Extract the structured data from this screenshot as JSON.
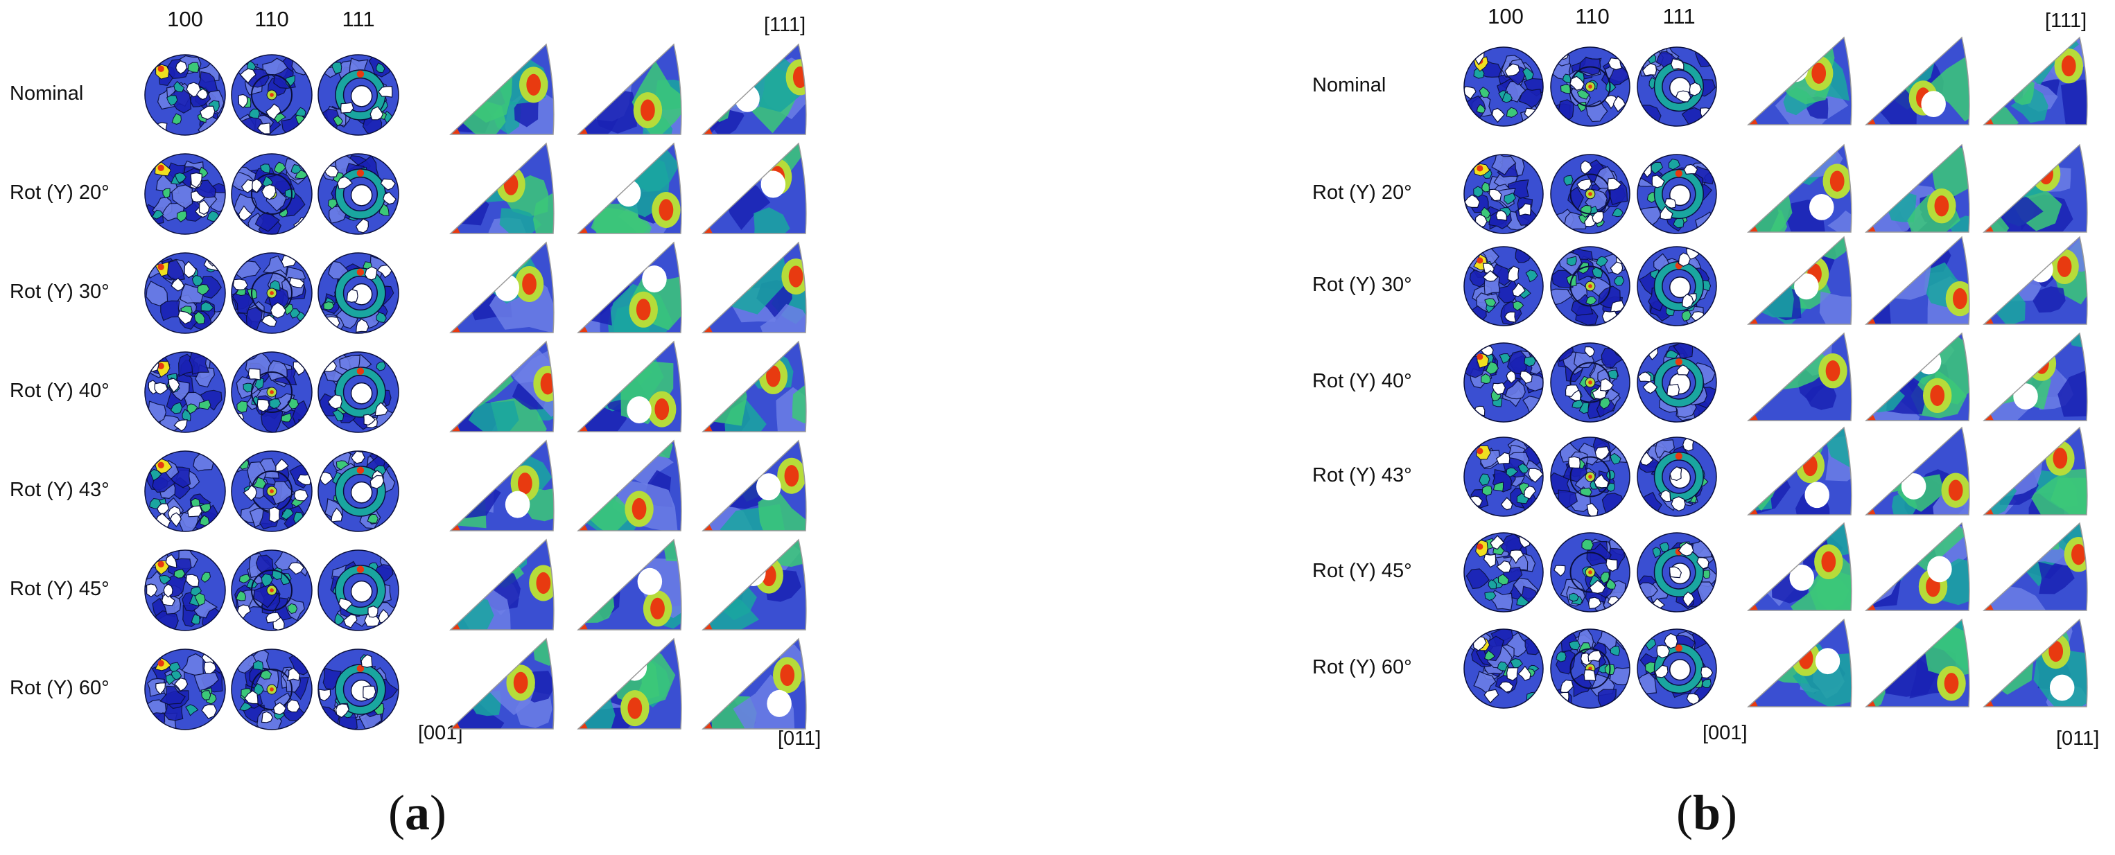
{
  "colors": {
    "white": "#ffffff",
    "dark_blue": "#1a22b4",
    "blue": "#3a4fd2",
    "light_blue": "#6c7ee6",
    "teal": "#1aa6a0",
    "green": "#3cc878",
    "yellow_green": "#b6dc3a",
    "yellow": "#f0e020",
    "red": "#e83a10",
    "outline": "#0a0f3c"
  },
  "panels": [
    {
      "id": "a",
      "tag": "a",
      "pole_figure_headers": [
        "100",
        "110",
        "111"
      ],
      "ipf_corner_labels": {
        "top": "[111]",
        "bottom_left": "[001]",
        "bottom_right": "[011]"
      },
      "rows": [
        "Nominal",
        "Rot (Y) 20°",
        "Rot (Y) 30°",
        "Rot (Y) 40°",
        "Rot (Y) 43°",
        "Rot (Y) 45°",
        "Rot (Y) 60°"
      ]
    },
    {
      "id": "b",
      "tag": "b",
      "pole_figure_headers": [
        "100",
        "110",
        "111"
      ],
      "ipf_corner_labels": {
        "top": "[111]",
        "bottom_left": "[001]",
        "bottom_right": "[011]"
      },
      "rows": [
        "Nominal",
        "Rot (Y) 20°",
        "Rot (Y) 30°",
        "Rot (Y) 40°",
        "Rot (Y) 43°",
        "Rot (Y) 45°",
        "Rot (Y) 60°"
      ]
    }
  ]
}
